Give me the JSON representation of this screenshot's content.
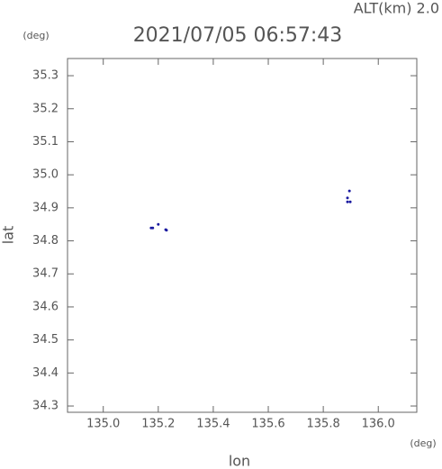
{
  "chart_data": {
    "type": "scatter",
    "title": "2021/07/05 06:57:43",
    "annotation": "ALT(km) 2.0",
    "y_unit": "(deg)",
    "x_unit": "(deg)",
    "xlabel": "lon",
    "ylabel": "lat",
    "x": [
      135.174,
      135.18,
      135.2,
      135.227,
      135.23,
      135.895,
      135.888,
      135.888,
      135.898
    ],
    "values": [
      34.839,
      34.839,
      34.85,
      34.834,
      34.832,
      34.951,
      34.93,
      34.918,
      34.918
    ],
    "color": "#1a1aa0",
    "xlim": [
      134.87,
      136.14
    ],
    "ylim": [
      34.281,
      35.352
    ],
    "xticks": [
      {
        "value": 135,
        "label": "135.0"
      },
      135.2,
      135.4,
      135.6,
      135.8,
      {
        "value": 136,
        "label": "136.0"
      }
    ],
    "yticks": [
      34.3,
      34.4,
      34.5,
      34.6,
      34.7,
      34.8,
      34.9,
      {
        "value": 35,
        "label": "35.0"
      },
      35.1,
      35.2,
      35.3
    ],
    "grid": false
  }
}
